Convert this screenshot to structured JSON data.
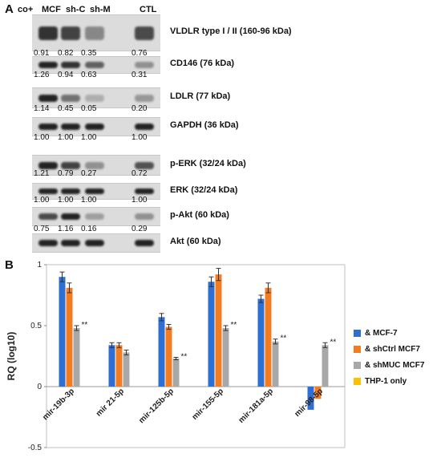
{
  "panelA": {
    "letter": "A",
    "lanes": [
      "co+",
      "MCF",
      "sh-C",
      "sh-M",
      "CTL"
    ],
    "blots": [
      {
        "label": "VLDLR type I / II (160-96 kDa)",
        "quant": [
          "0.91",
          "0.82",
          "0.35",
          "0.76"
        ],
        "intensity": [
          0.9,
          0.8,
          0.35,
          0.75
        ]
      },
      {
        "label": "CD146 (76 kDa)",
        "quant": [
          "1.26",
          "0.94",
          "0.63",
          "0.31"
        ],
        "intensity": [
          1.0,
          0.9,
          0.6,
          0.3
        ]
      },
      {
        "label": "LDLR (77 kDa)",
        "quant": [
          "1.14",
          "0.45",
          "0.05",
          "0.20"
        ],
        "intensity": [
          1.0,
          0.5,
          0.1,
          0.25
        ]
      },
      {
        "label": "GAPDH (36 kDa)",
        "quant": [
          "1.00",
          "1.00",
          "1.00",
          "1.00"
        ],
        "intensity": [
          1.0,
          1.0,
          1.0,
          1.0
        ]
      },
      {
        "label": "p-ERK (32/24 kDa)",
        "quant": [
          "1.21",
          "0.79",
          "0.27",
          "0.72"
        ],
        "intensity": [
          1.0,
          0.8,
          0.3,
          0.7
        ]
      },
      {
        "label": "ERK (32/24 kDa)",
        "quant": [
          "1.00",
          "1.00",
          "1.00",
          "1.00"
        ],
        "intensity": [
          1.0,
          1.0,
          1.0,
          1.0
        ]
      },
      {
        "label": "p-Akt (60 kDa)",
        "quant": [
          "0.75",
          "1.16",
          "0.16",
          "0.29"
        ],
        "intensity": [
          0.75,
          1.0,
          0.2,
          0.3
        ]
      },
      {
        "label": "Akt (60 kDa)",
        "quant": [],
        "intensity": [
          1.0,
          1.0,
          1.0,
          1.0
        ]
      }
    ]
  },
  "panelB": {
    "letter": "B",
    "chart_data": {
      "type": "bar",
      "ylabel": "RQ (log10)",
      "ylim": [
        -0.5,
        1.0
      ],
      "yticks": [
        "-0.5",
        "0",
        "0.5",
        "1"
      ],
      "categories": [
        "mir-19b-3p",
        "mir 21-5p",
        "mir-125b-5p",
        "mir-155-5p",
        "mir-181a-5p",
        "mir-98-5p"
      ],
      "series": [
        {
          "name": "& MCF-7",
          "color": "#2e6fd6",
          "values": [
            0.9,
            0.34,
            0.57,
            0.86,
            0.72,
            -0.19
          ],
          "errors": [
            0.04,
            0.02,
            0.03,
            0.04,
            0.03,
            0.0
          ]
        },
        {
          "name": "& shCtrl MCF7",
          "color": "#f47c20",
          "values": [
            0.81,
            0.34,
            0.49,
            0.92,
            0.81,
            -0.1
          ],
          "errors": [
            0.04,
            0.02,
            0.02,
            0.05,
            0.04,
            0.0
          ]
        },
        {
          "name": "& shMUC MCF7",
          "color": "#a8a8a8",
          "values": [
            0.48,
            0.28,
            0.23,
            0.48,
            0.37,
            0.34
          ],
          "errors": [
            0.02,
            0.02,
            0.01,
            0.02,
            0.02,
            0.02
          ],
          "annotations": [
            "**",
            "",
            "**",
            "**",
            "**",
            "**"
          ]
        },
        {
          "name": "THP-1 only",
          "color": "#ffc000",
          "values": [
            0,
            0,
            0,
            0,
            0,
            0
          ],
          "errors": [
            0,
            0,
            0,
            0,
            0,
            0
          ]
        }
      ],
      "legend": "right"
    }
  }
}
